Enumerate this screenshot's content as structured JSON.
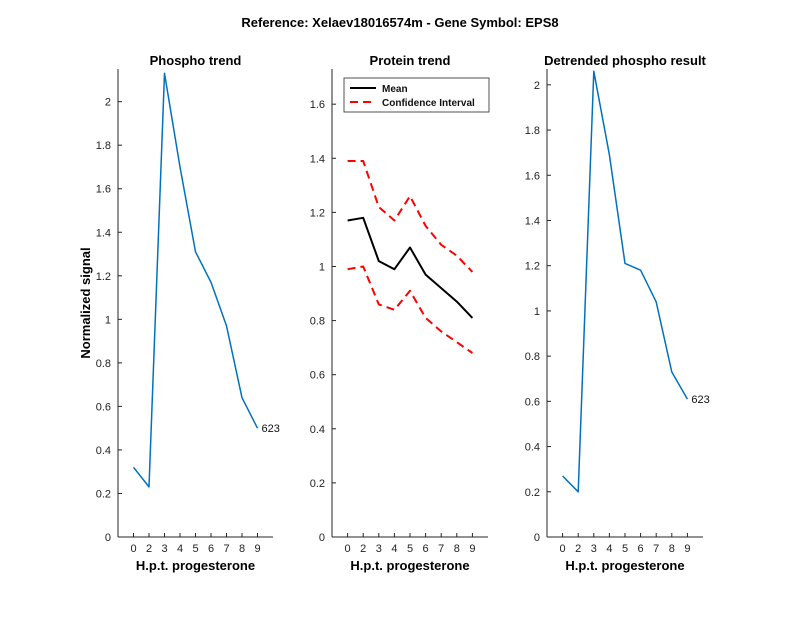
{
  "figure": {
    "suptitle": "Reference:  Xelaev18016574m - Gene Symbol:  EPS8"
  },
  "chart_data": [
    {
      "type": "line",
      "title": "Phospho trend",
      "xlabel": "H.p.t. progesterone",
      "ylabel": "Normalized signal",
      "x_ticks": [
        "0",
        "2",
        "3",
        "4",
        "5",
        "6",
        "7",
        "8",
        "9"
      ],
      "y_ticks": [
        "0",
        "0.2",
        "0.4",
        "0.6",
        "0.8",
        "1",
        "1.2",
        "1.4",
        "1.6",
        "1.8",
        "2"
      ],
      "ylim": [
        0,
        2.15
      ],
      "series": [
        {
          "color": "#0072BD",
          "values": [
            0.32,
            0.23,
            2.13,
            1.7,
            1.31,
            1.17,
            0.97,
            0.64,
            0.5
          ]
        }
      ],
      "annotation": {
        "text": "623",
        "x": "9",
        "y": 0.5
      }
    },
    {
      "type": "line",
      "title": "Protein trend",
      "xlabel": "H.p.t. progesterone",
      "ylabel": "",
      "x_ticks": [
        "0",
        "2",
        "3",
        "4",
        "5",
        "6",
        "7",
        "8",
        "9"
      ],
      "y_ticks": [
        "0",
        "0.2",
        "0.4",
        "0.6",
        "0.8",
        "1",
        "1.2",
        "1.4",
        "1.6"
      ],
      "ylim": [
        0,
        1.73
      ],
      "legend": {
        "placement": "top-left",
        "entries": [
          "Mean",
          "Confidence Interval"
        ]
      },
      "series": [
        {
          "name": "Mean",
          "color": "#000000",
          "style": "solid",
          "values": [
            1.17,
            1.18,
            1.02,
            0.99,
            1.07,
            0.97,
            0.92,
            0.87,
            0.81
          ]
        },
        {
          "name": "Confidence Interval",
          "color": "#FF0000",
          "style": "dashed",
          "values": [
            1.39,
            1.39,
            1.22,
            1.17,
            1.26,
            1.15,
            1.08,
            1.04,
            0.98
          ]
        },
        {
          "name": "Confidence Interval",
          "color": "#FF0000",
          "style": "dashed",
          "values": [
            0.99,
            1.0,
            0.86,
            0.84,
            0.91,
            0.81,
            0.76,
            0.72,
            0.68
          ]
        }
      ]
    },
    {
      "type": "line",
      "title": "Detrended phospho result",
      "xlabel": "H.p.t. progesterone",
      "ylabel": "",
      "x_ticks": [
        "0",
        "2",
        "3",
        "4",
        "5",
        "6",
        "7",
        "8",
        "9"
      ],
      "y_ticks": [
        "0",
        "0.2",
        "0.4",
        "0.6",
        "0.8",
        "1",
        "1.2",
        "1.4",
        "1.6",
        "1.8",
        "2"
      ],
      "ylim": [
        0,
        2.07
      ],
      "series": [
        {
          "color": "#0072BD",
          "values": [
            0.27,
            0.2,
            2.06,
            1.69,
            1.21,
            1.18,
            1.04,
            0.73,
            0.61
          ]
        }
      ],
      "annotation": {
        "text": "623",
        "x": "9",
        "y": 0.61
      }
    }
  ]
}
